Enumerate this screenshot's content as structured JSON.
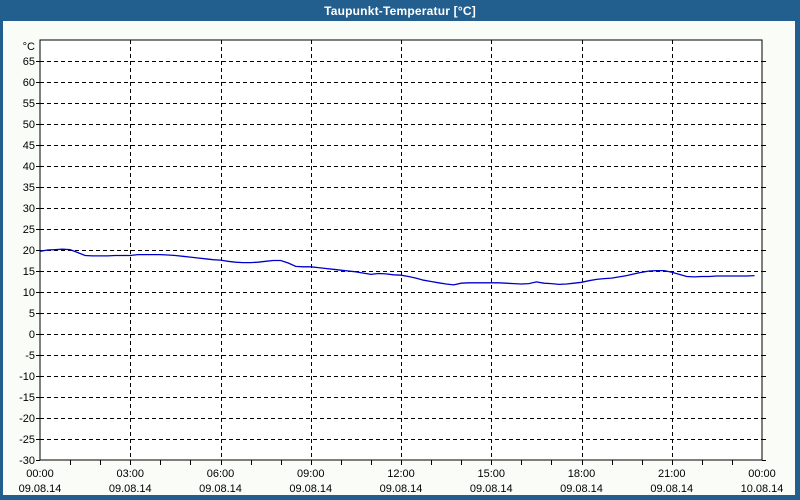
{
  "window": {
    "title": "Taupunkt-Temperatur [°C]",
    "titlebar_color": "#235F8E",
    "border_color": "#235F8E",
    "background_color": "#FAFCF8"
  },
  "chart_data": {
    "type": "line",
    "title": "Taupunkt-Temperatur [°C]",
    "plot_bg_color": "#FFFFFF",
    "grid": "dashed-black",
    "legend": "none",
    "xlim": [
      0,
      24
    ],
    "ylim": [
      -30,
      70
    ],
    "y_axis": {
      "unit": "°C",
      "tick_step": 5,
      "tick_values": [
        65,
        60,
        55,
        50,
        45,
        40,
        35,
        30,
        25,
        20,
        15,
        10,
        5,
        0,
        -5,
        -10,
        -15,
        -20,
        -25,
        -30
      ]
    },
    "x_axis": {
      "major_tick_interval_hours": 3,
      "minor_tick_interval_hours": 1,
      "ticks": [
        {
          "time": "00:00",
          "date": "09.08.14"
        },
        {
          "time": "03:00",
          "date": "09.08.14"
        },
        {
          "time": "06:00",
          "date": "09.08.14"
        },
        {
          "time": "09:00",
          "date": "09.08.14"
        },
        {
          "time": "12:00",
          "date": "09.08.14"
        },
        {
          "time": "15:00",
          "date": "09.08.14"
        },
        {
          "time": "18:00",
          "date": "09.08.14"
        },
        {
          "time": "21:00",
          "date": "09.08.14"
        },
        {
          "time": "00:00",
          "date": "10.08.14"
        }
      ]
    },
    "series": [
      {
        "name": "Taupunkt-Temperatur",
        "color": "#0000CC",
        "x_start_hours": 0,
        "x_step_hours": 0.25,
        "values": [
          19.7,
          20.0,
          20.1,
          20.2,
          20.1,
          19.4,
          18.7,
          18.6,
          18.6,
          18.6,
          18.7,
          18.7,
          18.7,
          18.9,
          18.9,
          18.9,
          18.9,
          18.8,
          18.7,
          18.5,
          18.3,
          18.1,
          17.9,
          17.7,
          17.6,
          17.3,
          17.1,
          17.0,
          17.0,
          17.1,
          17.3,
          17.5,
          17.5,
          16.9,
          16.1,
          16.0,
          16.0,
          15.8,
          15.6,
          15.4,
          15.2,
          15.0,
          14.8,
          14.5,
          14.2,
          14.4,
          14.3,
          14.1,
          14.0,
          13.7,
          13.3,
          12.8,
          12.5,
          12.2,
          11.9,
          11.7,
          12.1,
          12.2,
          12.2,
          12.2,
          12.2,
          12.2,
          12.1,
          12.0,
          11.9,
          12.0,
          12.4,
          12.1,
          12.0,
          11.8,
          11.9,
          12.1,
          12.3,
          12.7,
          13.0,
          13.2,
          13.3,
          13.6,
          13.9,
          14.3,
          14.7,
          15.0,
          15.1,
          15.1,
          14.7,
          14.2,
          13.7,
          13.6,
          13.7,
          13.7,
          13.8,
          13.8,
          13.8,
          13.8,
          13.8,
          13.9
        ]
      }
    ]
  }
}
